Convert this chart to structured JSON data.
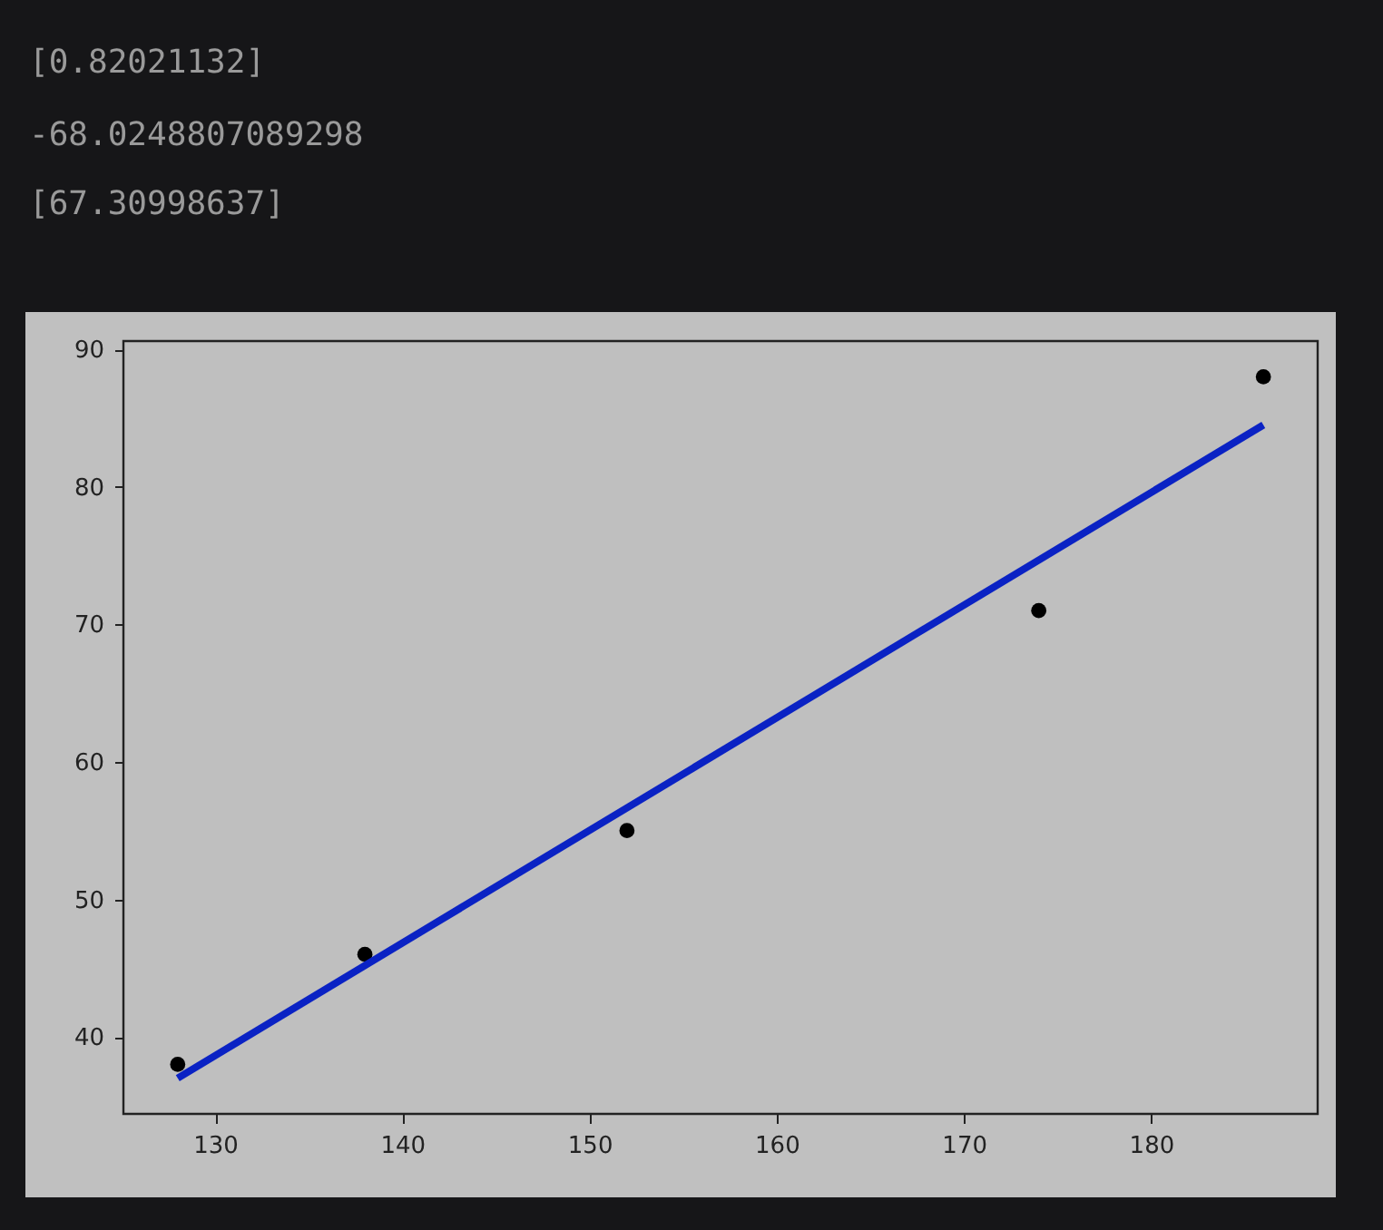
{
  "chart_data": {
    "type": "scatter",
    "annotations": [
      "[0.82021132]",
      "-68.0248807089298",
      "[67.30998637]"
    ],
    "series": [
      {
        "type": "scatter",
        "color": "#000000",
        "marker": "circle",
        "x": [
          128,
          138,
          152,
          174,
          186
        ],
        "values": [
          38,
          46,
          55,
          71,
          88
        ]
      },
      {
        "type": "line",
        "color": "#0a22c4",
        "marker": "none",
        "line_style": "solid",
        "x": [
          128,
          186
        ],
        "values": [
          37.0,
          84.5
        ]
      }
    ],
    "xlim": [
      125.1,
      188.9
    ],
    "xticks": [
      130,
      140,
      150,
      160,
      170,
      180
    ],
    "ylim": [
      34.4,
      90.6
    ],
    "yticks": [
      40,
      50,
      60,
      70,
      80,
      90
    ],
    "grid": false
  }
}
